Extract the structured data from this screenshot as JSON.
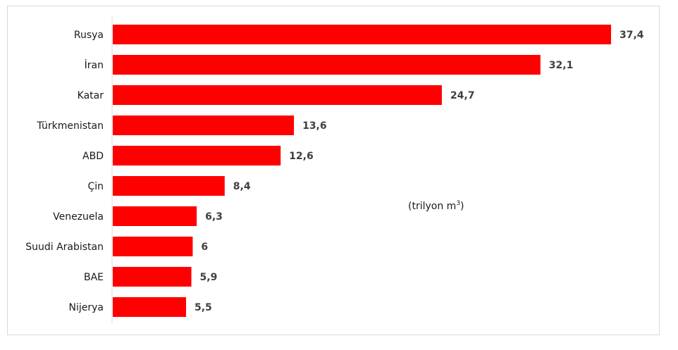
{
  "chart_data": {
    "type": "bar",
    "orientation": "horizontal",
    "categories": [
      "Rusya",
      "İran",
      "Katar",
      "Türkmenistan",
      "ABD",
      "Çin",
      "Venezuela",
      "Suudi Arabistan",
      "BAE",
      "Nijerya"
    ],
    "values": [
      37.4,
      32.1,
      24.7,
      13.6,
      12.6,
      8.4,
      6.3,
      6,
      5.9,
      5.5
    ],
    "value_labels": [
      "37,4",
      "32,1",
      "24,7",
      "13,6",
      "12,6",
      "8,4",
      "6,3",
      "6",
      "5,9",
      "5,5"
    ],
    "unit_text": "(trilyon m",
    "unit_superscript": "3",
    "unit_close": ")",
    "xlim": [
      0,
      37.4
    ],
    "grid": false,
    "legend": "none",
    "bar_color": "#ff0000",
    "axis_color": "#d9d9d9"
  }
}
